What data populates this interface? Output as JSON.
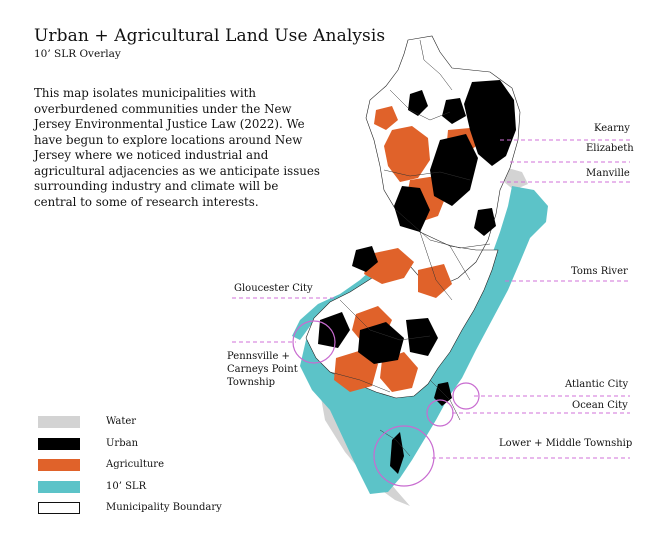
{
  "title": "Urban + Agricultural Land Use Analysis",
  "subtitle": "10’ SLR Overlay",
  "description": "This map isolates municipalities with overburdened communities under the New Jersey Environmental Justice Law (2022). We have begun to explore locations around New Jersey where we noticed industrial and agricultural adjacencies as we anticipate issues surrounding industry and climate will be central to some of research interests.",
  "labels": {
    "kearny": "Kearny",
    "elizabeth": "Elizabeth",
    "manville": "Manville",
    "toms_river": "Toms River",
    "gloucester_city": "Gloucester City",
    "pennsville_line1": "Pennsville +",
    "pennsville_line2": "Carneys Point",
    "pennsville_line3": "Township",
    "atlantic_city": "Atlantic City",
    "ocean_city": "Ocean City",
    "lower_middle": "Lower + Middle Township"
  },
  "legend": [
    {
      "label": "Water",
      "color": "#d3d3d3"
    },
    {
      "label": "Urban",
      "color": "#000000"
    },
    {
      "label": "Agriculture",
      "color": "#e0622a"
    },
    {
      "label": "10’ SLR",
      "color": "#5cc3c8"
    },
    {
      "label": "Municipality Boundary",
      "color": "#ffffff"
    }
  ],
  "colors": {
    "water": "#d3d3d3",
    "urban": "#000000",
    "agriculture": "#e0622a",
    "slr": "#5cc3c8",
    "highlight": "#c86bd0"
  }
}
